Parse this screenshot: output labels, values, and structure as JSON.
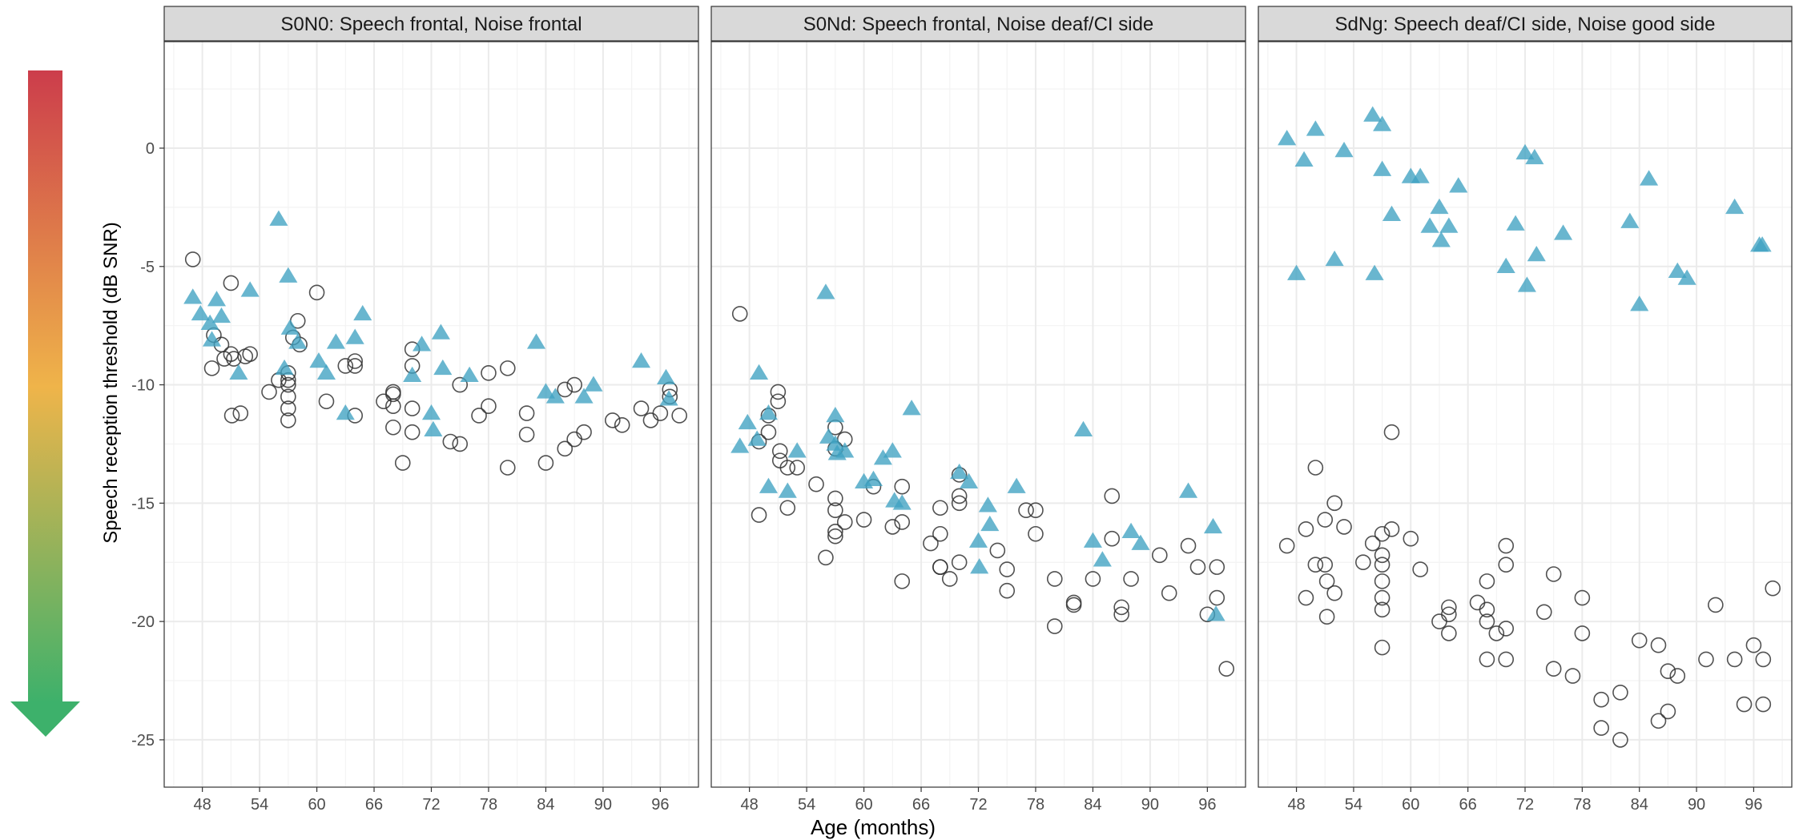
{
  "chart_data": {
    "type": "scatter",
    "xlabel": "Age (months)",
    "ylabel": "Speech reception threshold (dB SNR)",
    "xlim": [
      44,
      100
    ],
    "ylim": [
      -27,
      4.5
    ],
    "x_ticks": [
      48,
      54,
      60,
      66,
      72,
      78,
      84,
      90,
      96
    ],
    "y_ticks": [
      0,
      -5,
      -10,
      -15,
      -20,
      -25
    ],
    "grid": true,
    "legend": "none",
    "colors": {
      "triangle": "#3FA2C2",
      "circle_stroke": "#333333",
      "strip": "#d9d9d9",
      "grid_major": "#ebebeb",
      "arrow_top": "#cc3d4b",
      "arrow_mid": "#efb44a",
      "arrow_bottom": "#3db16b"
    },
    "panels": [
      {
        "title": "S0N0: Speech frontal, Noise frontal",
        "triangles": [
          [
            47,
            -6.3
          ],
          [
            47.8,
            -7
          ],
          [
            48.8,
            -7.4
          ],
          [
            49,
            -8.1
          ],
          [
            49.5,
            -6.4
          ],
          [
            50,
            -7.1
          ],
          [
            51.8,
            -9.5
          ],
          [
            53,
            -6
          ],
          [
            56,
            -3
          ],
          [
            56.6,
            -9.3
          ],
          [
            57,
            -5.4
          ],
          [
            57.2,
            -7.6
          ],
          [
            58,
            -8.2
          ],
          [
            60.2,
            -9
          ],
          [
            61,
            -9.5
          ],
          [
            62,
            -8.2
          ],
          [
            63,
            -11.2
          ],
          [
            64,
            -8
          ],
          [
            64.8,
            -7
          ],
          [
            70,
            -9.6
          ],
          [
            71,
            -8.3
          ],
          [
            72,
            -11.2
          ],
          [
            72.2,
            -11.9
          ],
          [
            73,
            -7.8
          ],
          [
            73.2,
            -9.3
          ],
          [
            76,
            -9.6
          ],
          [
            83,
            -8.2
          ],
          [
            84,
            -10.3
          ],
          [
            85,
            -10.5
          ],
          [
            88,
            -10.5
          ],
          [
            89,
            -10
          ],
          [
            94,
            -9
          ],
          [
            96.6,
            -9.7
          ],
          [
            96.9,
            -10.6
          ]
        ],
        "circles": [
          [
            47,
            -4.7
          ],
          [
            49,
            -9.3
          ],
          [
            49.2,
            -7.9
          ],
          [
            50,
            -8.3
          ],
          [
            50.3,
            -8.9
          ],
          [
            51,
            -5.7
          ],
          [
            51,
            -8.7
          ],
          [
            51.1,
            -11.3
          ],
          [
            51.3,
            -8.9
          ],
          [
            52,
            -11.2
          ],
          [
            52.5,
            -8.8
          ],
          [
            53,
            -8.7
          ],
          [
            55,
            -10.3
          ],
          [
            56,
            -9.8
          ],
          [
            57,
            -9.5
          ],
          [
            57,
            -9.8
          ],
          [
            57,
            -10
          ],
          [
            57,
            -10.5
          ],
          [
            57,
            -11
          ],
          [
            57,
            -11.5
          ],
          [
            57.5,
            -8
          ],
          [
            58,
            -7.3
          ],
          [
            58.2,
            -8.3
          ],
          [
            60,
            -6.1
          ],
          [
            61,
            -10.7
          ],
          [
            63,
            -9.2
          ],
          [
            64,
            -9
          ],
          [
            64,
            -9.2
          ],
          [
            64,
            -11.3
          ],
          [
            67,
            -10.7
          ],
          [
            68,
            -10.3
          ],
          [
            68,
            -10.4
          ],
          [
            68,
            -10.9
          ],
          [
            68,
            -11.8
          ],
          [
            69,
            -13.3
          ],
          [
            70,
            -8.5
          ],
          [
            70,
            -9.2
          ],
          [
            70,
            -11
          ],
          [
            70,
            -12
          ],
          [
            74,
            -12.4
          ],
          [
            75,
            -10
          ],
          [
            75,
            -12.5
          ],
          [
            77,
            -11.3
          ],
          [
            78,
            -9.5
          ],
          [
            78,
            -10.9
          ],
          [
            80,
            -9.3
          ],
          [
            80,
            -13.5
          ],
          [
            82,
            -11.2
          ],
          [
            82,
            -12.1
          ],
          [
            84,
            -13.3
          ],
          [
            86,
            -10.2
          ],
          [
            86,
            -12.7
          ],
          [
            87,
            -10
          ],
          [
            87,
            -12.3
          ],
          [
            88,
            -12
          ],
          [
            91,
            -11.5
          ],
          [
            92,
            -11.7
          ],
          [
            94,
            -11
          ],
          [
            95,
            -11.5
          ],
          [
            96,
            -11.2
          ],
          [
            97,
            -10.2
          ],
          [
            97,
            -10.5
          ],
          [
            98,
            -11.3
          ]
        ]
      },
      {
        "title": "S0Nd: Speech frontal, Noise deaf/CI side",
        "triangles": [
          [
            47,
            -12.6
          ],
          [
            47.8,
            -11.6
          ],
          [
            48.8,
            -12.3
          ],
          [
            49,
            -9.5
          ],
          [
            50,
            -11.2
          ],
          [
            50,
            -14.3
          ],
          [
            52,
            -14.5
          ],
          [
            53,
            -12.8
          ],
          [
            56,
            -6.1
          ],
          [
            56.3,
            -12.2
          ],
          [
            57,
            -11.3
          ],
          [
            57,
            -12.5
          ],
          [
            57.2,
            -12.9
          ],
          [
            58,
            -12.8
          ],
          [
            60,
            -14.1
          ],
          [
            61,
            -14
          ],
          [
            62,
            -13.1
          ],
          [
            63,
            -12.8
          ],
          [
            63.2,
            -14.9
          ],
          [
            64,
            -15
          ],
          [
            65,
            -11
          ],
          [
            70,
            -13.7
          ],
          [
            71,
            -14.1
          ],
          [
            72,
            -16.6
          ],
          [
            72.1,
            -17.7
          ],
          [
            73,
            -15.1
          ],
          [
            73.2,
            -15.9
          ],
          [
            76,
            -14.3
          ],
          [
            83,
            -11.9
          ],
          [
            84,
            -16.6
          ],
          [
            85,
            -17.4
          ],
          [
            88,
            -16.2
          ],
          [
            89,
            -16.7
          ],
          [
            94,
            -14.5
          ],
          [
            96.6,
            -16
          ],
          [
            96.9,
            -19.7
          ]
        ],
        "circles": [
          [
            47,
            -7
          ],
          [
            49,
            -15.5
          ],
          [
            49,
            -12.4
          ],
          [
            50,
            -12
          ],
          [
            50,
            -11.3
          ],
          [
            51,
            -10.3
          ],
          [
            51,
            -10.7
          ],
          [
            51.2,
            -12.8
          ],
          [
            51.2,
            -13.2
          ],
          [
            52,
            -13.5
          ],
          [
            52,
            -15.2
          ],
          [
            53,
            -13.5
          ],
          [
            55,
            -14.2
          ],
          [
            56,
            -17.3
          ],
          [
            57,
            -11.8
          ],
          [
            57,
            -12.7
          ],
          [
            57,
            -14.8
          ],
          [
            57,
            -15.3
          ],
          [
            57,
            -16.2
          ],
          [
            57,
            -16.4
          ],
          [
            58,
            -12.3
          ],
          [
            58,
            -15.8
          ],
          [
            60,
            -15.7
          ],
          [
            61,
            -14.3
          ],
          [
            63,
            -16
          ],
          [
            64,
            -15.8
          ],
          [
            64,
            -14.3
          ],
          [
            64,
            -18.3
          ],
          [
            67,
            -16.7
          ],
          [
            68,
            -15.2
          ],
          [
            68,
            -16.3
          ],
          [
            68,
            -17.7
          ],
          [
            68,
            -17.7
          ],
          [
            69,
            -18.2
          ],
          [
            70,
            -13.8
          ],
          [
            70,
            -14.7
          ],
          [
            70,
            -15
          ],
          [
            70,
            -17.5
          ],
          [
            74,
            -17
          ],
          [
            75,
            -17.8
          ],
          [
            75,
            -18.7
          ],
          [
            77,
            -15.3
          ],
          [
            78,
            -15.3
          ],
          [
            78,
            -16.3
          ],
          [
            80,
            -18.2
          ],
          [
            80,
            -20.2
          ],
          [
            82,
            -19.2
          ],
          [
            82,
            -19.3
          ],
          [
            84,
            -18.2
          ],
          [
            86,
            -14.7
          ],
          [
            86,
            -16.5
          ],
          [
            87,
            -19.4
          ],
          [
            87,
            -19.7
          ],
          [
            88,
            -18.2
          ],
          [
            91,
            -17.2
          ],
          [
            92,
            -18.8
          ],
          [
            94,
            -16.8
          ],
          [
            95,
            -17.7
          ],
          [
            96,
            -19.7
          ],
          [
            97,
            -17.7
          ],
          [
            97,
            -19
          ],
          [
            98,
            -22
          ]
        ]
      },
      {
        "title": "SdNg: Speech deaf/CI side, Noise good side",
        "triangles": [
          [
            47,
            0.4
          ],
          [
            48,
            -5.3
          ],
          [
            48.8,
            -0.5
          ],
          [
            50,
            0.8
          ],
          [
            52,
            -4.7
          ],
          [
            53,
            -0.1
          ],
          [
            56,
            1.4
          ],
          [
            56.2,
            -5.3
          ],
          [
            57,
            -0.9
          ],
          [
            57,
            1
          ],
          [
            58,
            -2.8
          ],
          [
            60,
            -1.2
          ],
          [
            61,
            -1.2
          ],
          [
            62,
            -3.3
          ],
          [
            63,
            -2.5
          ],
          [
            63.2,
            -3.9
          ],
          [
            64,
            -3.3
          ],
          [
            65,
            -1.6
          ],
          [
            70,
            -5
          ],
          [
            71,
            -3.2
          ],
          [
            72,
            -0.2
          ],
          [
            72.2,
            -5.8
          ],
          [
            73,
            -0.4
          ],
          [
            73.2,
            -4.5
          ],
          [
            76,
            -3.6
          ],
          [
            83,
            -3.1
          ],
          [
            84,
            -6.6
          ],
          [
            85,
            -1.3
          ],
          [
            88,
            -5.2
          ],
          [
            89,
            -5.5
          ],
          [
            94,
            -2.5
          ],
          [
            96.6,
            -4.1
          ],
          [
            96.9,
            -4.1
          ]
        ],
        "circles": [
          [
            47,
            -16.8
          ],
          [
            49,
            -19
          ],
          [
            49,
            -16.1
          ],
          [
            50,
            -13.5
          ],
          [
            50,
            -17.6
          ],
          [
            51,
            -15.7
          ],
          [
            51,
            -17.6
          ],
          [
            51.2,
            -18.3
          ],
          [
            51.2,
            -19.8
          ],
          [
            52,
            -15
          ],
          [
            52,
            -18.8
          ],
          [
            53,
            -16
          ],
          [
            55,
            -17.5
          ],
          [
            56,
            -16.7
          ],
          [
            57,
            -16.3
          ],
          [
            57,
            -17.2
          ],
          [
            57,
            -17.6
          ],
          [
            57,
            -18.3
          ],
          [
            57,
            -19
          ],
          [
            57,
            -19.5
          ],
          [
            57,
            -21.1
          ],
          [
            58,
            -12
          ],
          [
            58,
            -16.1
          ],
          [
            60,
            -16.5
          ],
          [
            61,
            -17.8
          ],
          [
            63,
            -20
          ],
          [
            64,
            -19.4
          ],
          [
            64,
            -19.7
          ],
          [
            64,
            -20.5
          ],
          [
            67,
            -19.2
          ],
          [
            68,
            -18.3
          ],
          [
            68,
            -19.5
          ],
          [
            68,
            -20
          ],
          [
            68,
            -21.6
          ],
          [
            69,
            -20.5
          ],
          [
            70,
            -16.8
          ],
          [
            70,
            -17.6
          ],
          [
            70,
            -20.3
          ],
          [
            70,
            -21.6
          ],
          [
            74,
            -19.6
          ],
          [
            75,
            -18
          ],
          [
            75,
            -22
          ],
          [
            77,
            -22.3
          ],
          [
            78,
            -19
          ],
          [
            78,
            -20.5
          ],
          [
            80,
            -23.3
          ],
          [
            80,
            -24.5
          ],
          [
            82,
            -23
          ],
          [
            82,
            -25
          ],
          [
            84,
            -20.8
          ],
          [
            86,
            -21
          ],
          [
            86,
            -24.2
          ],
          [
            87,
            -22.1
          ],
          [
            87,
            -23.8
          ],
          [
            88,
            -22.3
          ],
          [
            91,
            -21.6
          ],
          [
            92,
            -19.3
          ],
          [
            94,
            -21.6
          ],
          [
            95,
            -23.5
          ],
          [
            96,
            -21
          ],
          [
            97,
            -21.6
          ],
          [
            97,
            -23.5
          ],
          [
            98,
            -18.6
          ]
        ]
      }
    ]
  }
}
